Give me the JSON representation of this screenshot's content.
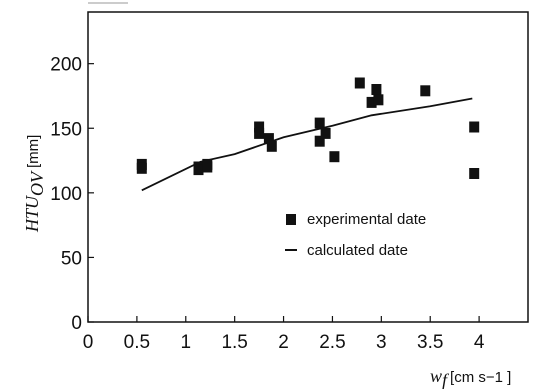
{
  "chart_data": {
    "type": "scatter",
    "xlabel": {
      "symbol": "w",
      "subscript": "f",
      "unit": "[cm s−1 ]"
    },
    "ylabel": {
      "symbol": "HTU",
      "subscript": "OV",
      "unit": "[mm]"
    },
    "xlim": [
      0,
      4.5
    ],
    "ylim": [
      0,
      240
    ],
    "xticks": [
      0,
      0.5,
      1,
      1.5,
      2,
      2.5,
      3,
      3.5,
      4
    ],
    "xtick_labels": [
      "0",
      "0.5",
      "1",
      "1.5",
      "2",
      "2.5",
      "3",
      "3.5",
      "4"
    ],
    "yticks": [
      0,
      50,
      100,
      150,
      200
    ],
    "ytick_labels": [
      "0",
      "50",
      "100",
      "150",
      "200"
    ],
    "grid": false,
    "legend_position": "center-right",
    "series": [
      {
        "name": "experimental date",
        "kind": "markers",
        "marker": "square",
        "color": "#111111",
        "points": [
          [
            0.55,
            122
          ],
          [
            0.55,
            119
          ],
          [
            1.13,
            120
          ],
          [
            1.13,
            118
          ],
          [
            1.22,
            122
          ],
          [
            1.22,
            120
          ],
          [
            1.75,
            151
          ],
          [
            1.75,
            146
          ],
          [
            1.85,
            142
          ],
          [
            1.88,
            136
          ],
          [
            2.37,
            154
          ],
          [
            2.37,
            140
          ],
          [
            2.43,
            146
          ],
          [
            2.52,
            128
          ],
          [
            2.78,
            185
          ],
          [
            2.9,
            170
          ],
          [
            2.95,
            180
          ],
          [
            2.97,
            172
          ],
          [
            3.45,
            179
          ],
          [
            3.95,
            151
          ],
          [
            3.95,
            115
          ]
        ]
      },
      {
        "name": "calculated date",
        "kind": "line",
        "color": "#111111",
        "points": [
          [
            0.55,
            102
          ],
          [
            1.15,
            124
          ],
          [
            1.5,
            130
          ],
          [
            2.0,
            143
          ],
          [
            2.5,
            152
          ],
          [
            2.9,
            160
          ],
          [
            3.5,
            167
          ],
          [
            3.93,
            173
          ]
        ]
      }
    ]
  }
}
